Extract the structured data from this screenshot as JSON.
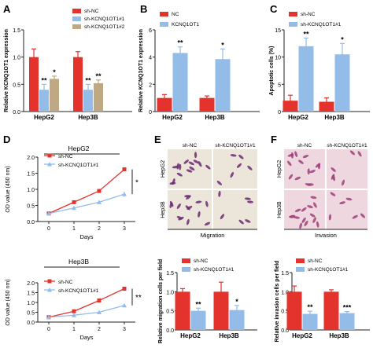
{
  "colors": {
    "red": "#e3332c",
    "blue": "#93bde8",
    "tan": "#bfa984",
    "axis": "#222222"
  },
  "icons": {
    "error-bar": "capped-line",
    "significance": "asterisk"
  },
  "panels": {
    "A": {
      "letter": "A"
    },
    "B": {
      "letter": "B"
    },
    "C": {
      "letter": "C"
    },
    "D": {
      "letter": "D"
    },
    "E": {
      "letter": "E"
    },
    "F": {
      "letter": "F"
    }
  },
  "chart_data": [
    {
      "id": "A",
      "type": "bar",
      "ylabel": "Relative KCNQ1OT1 expression",
      "ylim": [
        0,
        1.5
      ],
      "yticks": [
        0,
        0.5,
        1.0,
        1.5
      ],
      "categories": [
        "HepG2",
        "Hep3B"
      ],
      "series": [
        {
          "name": "sh-NC",
          "color": "#e3332c",
          "values": [
            1.0,
            1.0
          ],
          "errors": [
            0.15,
            0.1
          ],
          "sig": [
            "",
            ""
          ]
        },
        {
          "name": "sh-KCNQ1OT1#1",
          "color": "#93bde8",
          "values": [
            0.4,
            0.4
          ],
          "errors": [
            0.1,
            0.1
          ],
          "sig": [
            "**",
            "**"
          ]
        },
        {
          "name": "sh-KCNQ1OT1#2",
          "color": "#bfa984",
          "values": [
            0.6,
            0.52
          ],
          "errors": [
            0.05,
            0.06
          ],
          "sig": [
            "*",
            "**"
          ]
        }
      ],
      "legend": "top-right"
    },
    {
      "id": "B",
      "type": "bar",
      "ylabel": "Relative KCNQ1OT1 expression",
      "ylim": [
        0,
        6
      ],
      "yticks": [
        0,
        2,
        4,
        6
      ],
      "categories": [
        "HepG2",
        "Hep3B"
      ],
      "series": [
        {
          "name": "NC",
          "color": "#e3332c",
          "values": [
            1.0,
            1.0
          ],
          "errors": [
            0.25,
            0.15
          ],
          "sig": [
            "",
            ""
          ]
        },
        {
          "name": "KCNQ1OT1",
          "color": "#93bde8",
          "values": [
            4.3,
            3.85
          ],
          "errors": [
            0.45,
            0.75
          ],
          "sig": [
            "**",
            "*"
          ]
        }
      ],
      "legend": "top-left"
    },
    {
      "id": "C",
      "type": "bar",
      "ylabel": "Apoptotic cells (%)",
      "ylim": [
        0,
        15
      ],
      "yticks": [
        0,
        5,
        10,
        15
      ],
      "categories": [
        "HepG2",
        "Hep3B"
      ],
      "series": [
        {
          "name": "sh-NC",
          "color": "#e3332c",
          "values": [
            2.0,
            1.8
          ],
          "errors": [
            1.0,
            0.7
          ],
          "sig": [
            "",
            ""
          ]
        },
        {
          "name": "sh-KCNQ1OT1#1",
          "color": "#93bde8",
          "values": [
            12.0,
            10.5
          ],
          "errors": [
            1.5,
            2.0
          ],
          "sig": [
            "**",
            "*"
          ]
        }
      ],
      "legend": "top-left"
    },
    {
      "id": "D1",
      "type": "line",
      "title": "HepG2",
      "xlabel": "Days",
      "ylabel": "OD value (450 nm)",
      "x": [
        0,
        1,
        2,
        3
      ],
      "ylim": [
        0.0,
        2.0
      ],
      "yticks": [
        0.0,
        0.5,
        1.0,
        1.5,
        2.0
      ],
      "series": [
        {
          "name": "sh-NC",
          "color": "#e3332c",
          "marker": "square",
          "values": [
            0.25,
            0.6,
            0.95,
            1.62
          ],
          "errors": [
            0.03,
            0.03,
            0.04,
            0.04
          ]
        },
        {
          "name": "sh-KCNQ1OT1#1",
          "color": "#93bde8",
          "marker": "triangle",
          "values": [
            0.25,
            0.42,
            0.6,
            0.85
          ],
          "errors": [
            0.03,
            0.03,
            0.04,
            0.08
          ]
        }
      ],
      "sig": "*",
      "legend": "top-left"
    },
    {
      "id": "D2",
      "type": "line",
      "title": "Hep3B",
      "xlabel": "Days",
      "ylabel": "OD value (450 nm)",
      "x": [
        0,
        1,
        2,
        3
      ],
      "ylim": [
        0.0,
        2.0
      ],
      "yticks": [
        0.0,
        0.5,
        1.0,
        1.5,
        2.0
      ],
      "series": [
        {
          "name": "sh-NC",
          "color": "#e3332c",
          "marker": "square",
          "values": [
            0.25,
            0.55,
            1.1,
            1.7
          ],
          "errors": [
            0.03,
            0.05,
            0.05,
            0.07
          ]
        },
        {
          "name": "sh-KCNQ1OT1#1",
          "color": "#93bde8",
          "marker": "triangle",
          "values": [
            0.25,
            0.35,
            0.5,
            0.85
          ],
          "errors": [
            0.03,
            0.05,
            0.05,
            0.06
          ]
        }
      ],
      "sig": "**",
      "legend": "top-left"
    },
    {
      "id": "E",
      "type": "bar",
      "ylabel": "Relative migration cells per field",
      "ylim": [
        0,
        1.5
      ],
      "yticks": [
        0,
        0.5,
        1.0,
        1.5
      ],
      "categories": [
        "HepG2",
        "Hep3B"
      ],
      "series": [
        {
          "name": "sh-NC",
          "color": "#e3332c",
          "values": [
            1.0,
            1.0
          ],
          "errors": [
            0.08,
            0.25
          ],
          "sig": [
            "",
            ""
          ]
        },
        {
          "name": "sh-KCNQ1OT1#1",
          "color": "#93bde8",
          "values": [
            0.5,
            0.52
          ],
          "errors": [
            0.07,
            0.12
          ],
          "sig": [
            "**",
            "*"
          ]
        }
      ],
      "legend": "top-left"
    },
    {
      "id": "F",
      "type": "bar",
      "ylabel": "Relative invasion cells per field",
      "ylim": [
        0,
        1.5
      ],
      "yticks": [
        0,
        0.5,
        1.0,
        1.5
      ],
      "categories": [
        "HepG2",
        "Hep3B"
      ],
      "series": [
        {
          "name": "sh-NC",
          "color": "#e3332c",
          "values": [
            1.0,
            1.0
          ],
          "errors": [
            0.15,
            0.05
          ],
          "sig": [
            "",
            ""
          ]
        },
        {
          "name": "sh-KCNQ1OT1#1",
          "color": "#93bde8",
          "values": [
            0.42,
            0.44
          ],
          "errors": [
            0.07,
            0.04
          ],
          "sig": [
            "**",
            "***"
          ]
        }
      ],
      "legend": "top-left"
    }
  ],
  "micrographs": {
    "E": {
      "columns": [
        "sh-NC",
        "sh-KCNQ1OT1#1"
      ],
      "rows": [
        "HepG2",
        "Hep3B"
      ],
      "caption": "Migration",
      "tint": "#ece6da",
      "stain": "#6b2a73"
    },
    "F": {
      "columns": [
        "sh-NC",
        "sh-KCNQ1OT1#1"
      ],
      "rows": [
        "HepG2",
        "Hep3B"
      ],
      "caption": "Invasion",
      "tint": "#efd7df",
      "stain": "#9c3f7a"
    }
  }
}
